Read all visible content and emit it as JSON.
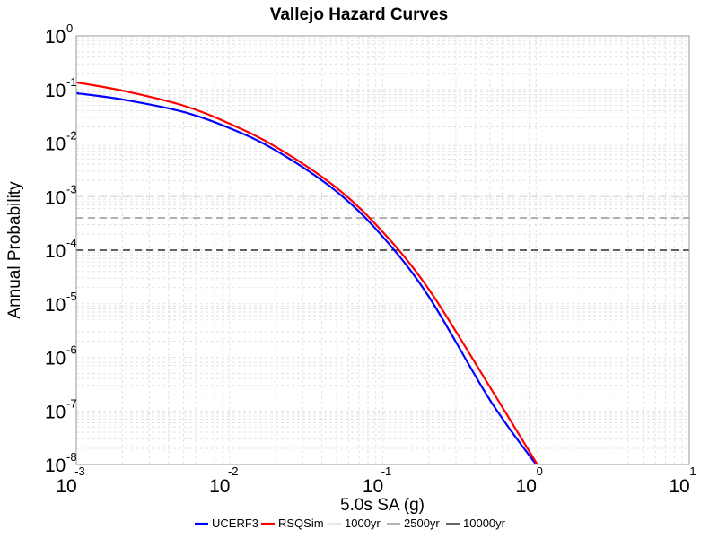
{
  "chart_data": {
    "type": "line",
    "title": "Vallejo Hazard Curves",
    "xlabel": "5.0s SA (g)",
    "ylabel": "Annual Probability",
    "x_scale": "log",
    "y_scale": "log",
    "xlim": [
      0.001,
      10
    ],
    "ylim": [
      1e-08,
      1
    ],
    "x_ticks": [
      {
        "base": "10",
        "exp": "-3",
        "value": 0.001
      },
      {
        "base": "10",
        "exp": "-2",
        "value": 0.01
      },
      {
        "base": "10",
        "exp": "-1",
        "value": 0.1
      },
      {
        "base": "10",
        "exp": "0",
        "value": 1
      },
      {
        "base": "10",
        "exp": "1",
        "value": 10
      }
    ],
    "y_ticks": [
      {
        "base": "10",
        "exp": "0",
        "value": 1
      },
      {
        "base": "10",
        "exp": "-1",
        "value": 0.1
      },
      {
        "base": "10",
        "exp": "-2",
        "value": 0.01
      },
      {
        "base": "10",
        "exp": "-3",
        "value": 0.001
      },
      {
        "base": "10",
        "exp": "-4",
        "value": 0.0001
      },
      {
        "base": "10",
        "exp": "-5",
        "value": 1e-05
      },
      {
        "base": "10",
        "exp": "-6",
        "value": 1e-06
      },
      {
        "base": "10",
        "exp": "-7",
        "value": 1e-07
      },
      {
        "base": "10",
        "exp": "-8",
        "value": 1e-08
      }
    ],
    "grid": true,
    "legend_position": "bottom",
    "series": [
      {
        "name": "UCERF3",
        "color": "#0000ff",
        "x": [
          0.001,
          0.002,
          0.005,
          0.01,
          0.02,
          0.05,
          0.1,
          0.2,
          0.5,
          1.0
        ],
        "y": [
          0.085,
          0.065,
          0.038,
          0.019,
          0.0073,
          0.00124,
          0.000178,
          1.35e-05,
          1.6e-07,
          1e-08
        ]
      },
      {
        "name": "RSQSim",
        "color": "#ff0000",
        "x": [
          0.001,
          0.002,
          0.005,
          0.01,
          0.02,
          0.05,
          0.1,
          0.2,
          0.5,
          1.02
        ],
        "y": [
          0.135,
          0.095,
          0.05,
          0.023,
          0.0085,
          0.00145,
          0.000218,
          1.85e-05,
          2.8e-07,
          1e-08
        ]
      }
    ],
    "reference_lines": [
      {
        "name": "1000yr",
        "y": 0.001,
        "color": "#d9d9d9"
      },
      {
        "name": "2500yr",
        "y": 0.0004,
        "color": "#808080"
      },
      {
        "name": "10000yr",
        "y": 0.0001,
        "color": "#000000"
      }
    ]
  }
}
